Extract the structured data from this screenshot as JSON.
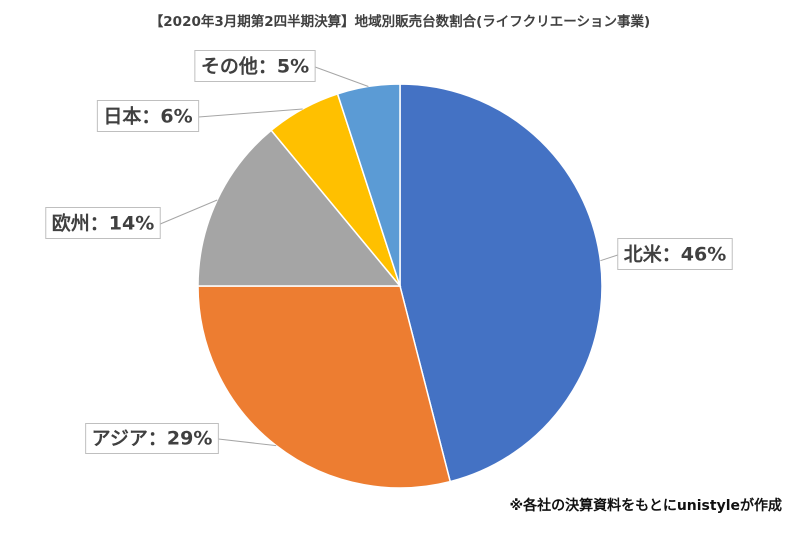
{
  "chart_data": {
    "type": "pie",
    "title": "【2020年3月期第2四半期決算】地域別販売台数割合(ライフクリエーション事業)",
    "values": [
      46,
      29,
      14,
      6,
      5
    ],
    "value_labels": [
      "北米：46%",
      "アジア：29%",
      "欧州：14%",
      "日本：6%",
      "その他：5%"
    ],
    "colors": [
      "#4472c4",
      "#ed7d31",
      "#a5a5a5",
      "#ffc000",
      "#5b9bd5"
    ],
    "note": "※各社の決算資料をもとにunistyleが作成"
  }
}
